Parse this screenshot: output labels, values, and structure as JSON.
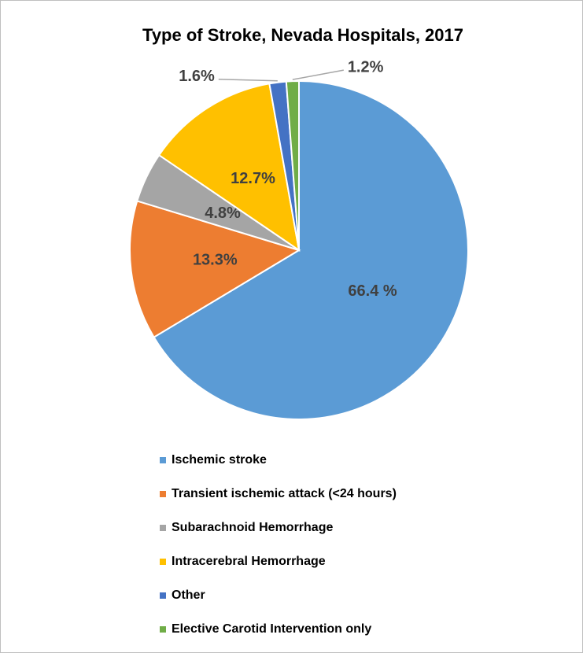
{
  "chart_data": {
    "type": "pie",
    "title": "Type of Stroke, Nevada Hospitals, 2017",
    "categories": [
      "Ischemic stroke",
      "Transient ischemic attack (<24 hours)",
      "Subarachnoid Hemorrhage",
      "Intracerebral Hemorrhage",
      "Other",
      "Elective Carotid Intervention only"
    ],
    "values": [
      66.4,
      13.3,
      4.8,
      12.7,
      1.6,
      1.2
    ],
    "value_labels": [
      "66.4 %",
      "13.3%",
      "4.8%",
      "12.7%",
      "1.6%",
      "1.2%"
    ],
    "colors": [
      "#5b9bd5",
      "#ed7d31",
      "#a5a5a5",
      "#ffc000",
      "#4472c4",
      "#70ad47"
    ],
    "legend": "bottom"
  }
}
